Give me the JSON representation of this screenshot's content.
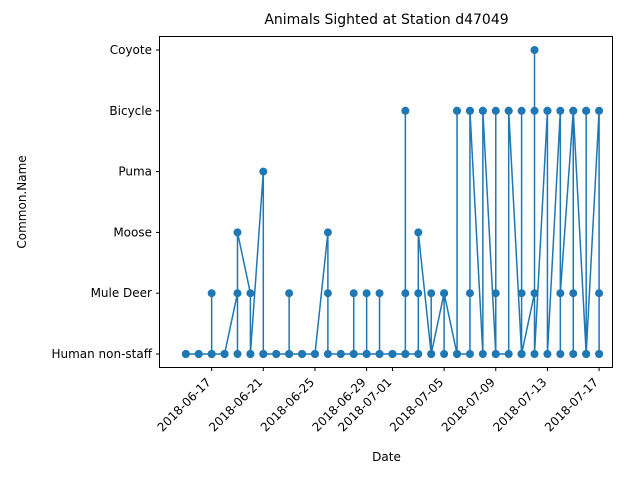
{
  "chart_data": {
    "type": "line",
    "title": "Animals Sighted at Station d47049",
    "xlabel": "Date",
    "ylabel": "Common.Name",
    "x_type": "date",
    "xlim": [
      "2018-06-13",
      "2018-07-18"
    ],
    "x_ticks": [
      "2018-06-17",
      "2018-06-21",
      "2018-06-25",
      "2018-06-29",
      "2018-07-01",
      "2018-07-05",
      "2018-07-09",
      "2018-07-13",
      "2018-07-17"
    ],
    "categories": [
      "Human non-staff",
      "Mule Deer",
      "Moose",
      "Puma",
      "Bicycle",
      "Coyote"
    ],
    "grid": false,
    "legend": "none",
    "colors": {
      "line": "#1f77b4",
      "marker": "#1f77b4"
    },
    "series": [
      {
        "name": "",
        "points": [
          [
            "2018-06-15",
            "Human non-staff"
          ],
          [
            "2018-06-15",
            "Human non-staff"
          ],
          [
            "2018-06-16",
            "Human non-staff"
          ],
          [
            "2018-06-16",
            "Human non-staff"
          ],
          [
            "2018-06-17",
            "Human non-staff"
          ],
          [
            "2018-06-17",
            "Mule Deer"
          ],
          [
            "2018-06-17",
            "Human non-staff"
          ],
          [
            "2018-06-18",
            "Human non-staff"
          ],
          [
            "2018-06-18",
            "Human non-staff"
          ],
          [
            "2018-06-19",
            "Mule Deer"
          ],
          [
            "2018-06-19",
            "Human non-staff"
          ],
          [
            "2018-06-19",
            "Moose"
          ],
          [
            "2018-06-20",
            "Mule Deer"
          ],
          [
            "2018-06-20",
            "Human non-staff"
          ],
          [
            "2018-06-20",
            "Human non-staff"
          ],
          [
            "2018-06-21",
            "Puma"
          ],
          [
            "2018-06-21",
            "Human non-staff"
          ],
          [
            "2018-06-21",
            "Human non-staff"
          ],
          [
            "2018-06-22",
            "Human non-staff"
          ],
          [
            "2018-06-22",
            "Human non-staff"
          ],
          [
            "2018-06-23",
            "Human non-staff"
          ],
          [
            "2018-06-23",
            "Mule Deer"
          ],
          [
            "2018-06-23",
            "Human non-staff"
          ],
          [
            "2018-06-24",
            "Human non-staff"
          ],
          [
            "2018-06-24",
            "Human non-staff"
          ],
          [
            "2018-06-25",
            "Human non-staff"
          ],
          [
            "2018-06-25",
            "Human non-staff"
          ],
          [
            "2018-06-26",
            "Moose"
          ],
          [
            "2018-06-26",
            "Mule Deer"
          ],
          [
            "2018-06-26",
            "Human non-staff"
          ],
          [
            "2018-06-27",
            "Human non-staff"
          ],
          [
            "2018-06-27",
            "Human non-staff"
          ],
          [
            "2018-06-28",
            "Human non-staff"
          ],
          [
            "2018-06-28",
            "Mule Deer"
          ],
          [
            "2018-06-28",
            "Human non-staff"
          ],
          [
            "2018-06-29",
            "Human non-staff"
          ],
          [
            "2018-06-29",
            "Mule Deer"
          ],
          [
            "2018-06-29",
            "Human non-staff"
          ],
          [
            "2018-06-30",
            "Human non-staff"
          ],
          [
            "2018-06-30",
            "Mule Deer"
          ],
          [
            "2018-06-30",
            "Human non-staff"
          ],
          [
            "2018-07-01",
            "Human non-staff"
          ],
          [
            "2018-07-01",
            "Human non-staff"
          ],
          [
            "2018-07-02",
            "Human non-staff"
          ],
          [
            "2018-07-02",
            "Bicycle"
          ],
          [
            "2018-07-02",
            "Mule Deer"
          ],
          [
            "2018-07-02",
            "Human non-staff"
          ],
          [
            "2018-07-03",
            "Human non-staff"
          ],
          [
            "2018-07-03",
            "Mule Deer"
          ],
          [
            "2018-07-03",
            "Moose"
          ],
          [
            "2018-07-04",
            "Human non-staff"
          ],
          [
            "2018-07-04",
            "Mule Deer"
          ],
          [
            "2018-07-04",
            "Human non-staff"
          ],
          [
            "2018-07-05",
            "Mule Deer"
          ],
          [
            "2018-07-05",
            "Human non-staff"
          ],
          [
            "2018-07-05",
            "Mule Deer"
          ],
          [
            "2018-07-06",
            "Human non-staff"
          ],
          [
            "2018-07-06",
            "Bicycle"
          ],
          [
            "2018-07-06",
            "Bicycle"
          ],
          [
            "2018-07-06",
            "Human non-staff"
          ],
          [
            "2018-07-07",
            "Human non-staff"
          ],
          [
            "2018-07-07",
            "Mule Deer"
          ],
          [
            "2018-07-07",
            "Bicycle"
          ],
          [
            "2018-07-07",
            "Bicycle"
          ],
          [
            "2018-07-08",
            "Human non-staff"
          ],
          [
            "2018-07-08",
            "Bicycle"
          ],
          [
            "2018-07-08",
            "Bicycle"
          ],
          [
            "2018-07-09",
            "Human non-staff"
          ],
          [
            "2018-07-09",
            "Mule Deer"
          ],
          [
            "2018-07-09",
            "Bicycle"
          ],
          [
            "2018-07-09",
            "Human non-staff"
          ],
          [
            "2018-07-10",
            "Human non-staff"
          ],
          [
            "2018-07-10",
            "Bicycle"
          ],
          [
            "2018-07-10",
            "Bicycle"
          ],
          [
            "2018-07-11",
            "Human non-staff"
          ],
          [
            "2018-07-11",
            "Mule Deer"
          ],
          [
            "2018-07-11",
            "Bicycle"
          ],
          [
            "2018-07-11",
            "Human non-staff"
          ],
          [
            "2018-07-12",
            "Mule Deer"
          ],
          [
            "2018-07-12",
            "Coyote"
          ],
          [
            "2018-07-12",
            "Bicycle"
          ],
          [
            "2018-07-12",
            "Human non-staff"
          ],
          [
            "2018-07-13",
            "Bicycle"
          ],
          [
            "2018-07-13",
            "Bicycle"
          ],
          [
            "2018-07-13",
            "Human non-staff"
          ],
          [
            "2018-07-14",
            "Bicycle"
          ],
          [
            "2018-07-14",
            "Human non-staff"
          ],
          [
            "2018-07-14",
            "Mule Deer"
          ],
          [
            "2018-07-15",
            "Bicycle"
          ],
          [
            "2018-07-15",
            "Mule Deer"
          ],
          [
            "2018-07-15",
            "Human non-staff"
          ],
          [
            "2018-07-15",
            "Bicycle"
          ],
          [
            "2018-07-16",
            "Human non-staff"
          ],
          [
            "2018-07-16",
            "Bicycle"
          ],
          [
            "2018-07-16",
            "Bicycle"
          ],
          [
            "2018-07-16",
            "Human non-staff"
          ],
          [
            "2018-07-17",
            "Bicycle"
          ],
          [
            "2018-07-17",
            "Human non-staff"
          ],
          [
            "2018-07-17",
            "Mule Deer"
          ],
          [
            "2018-07-17",
            "Human non-staff"
          ]
        ]
      }
    ]
  }
}
